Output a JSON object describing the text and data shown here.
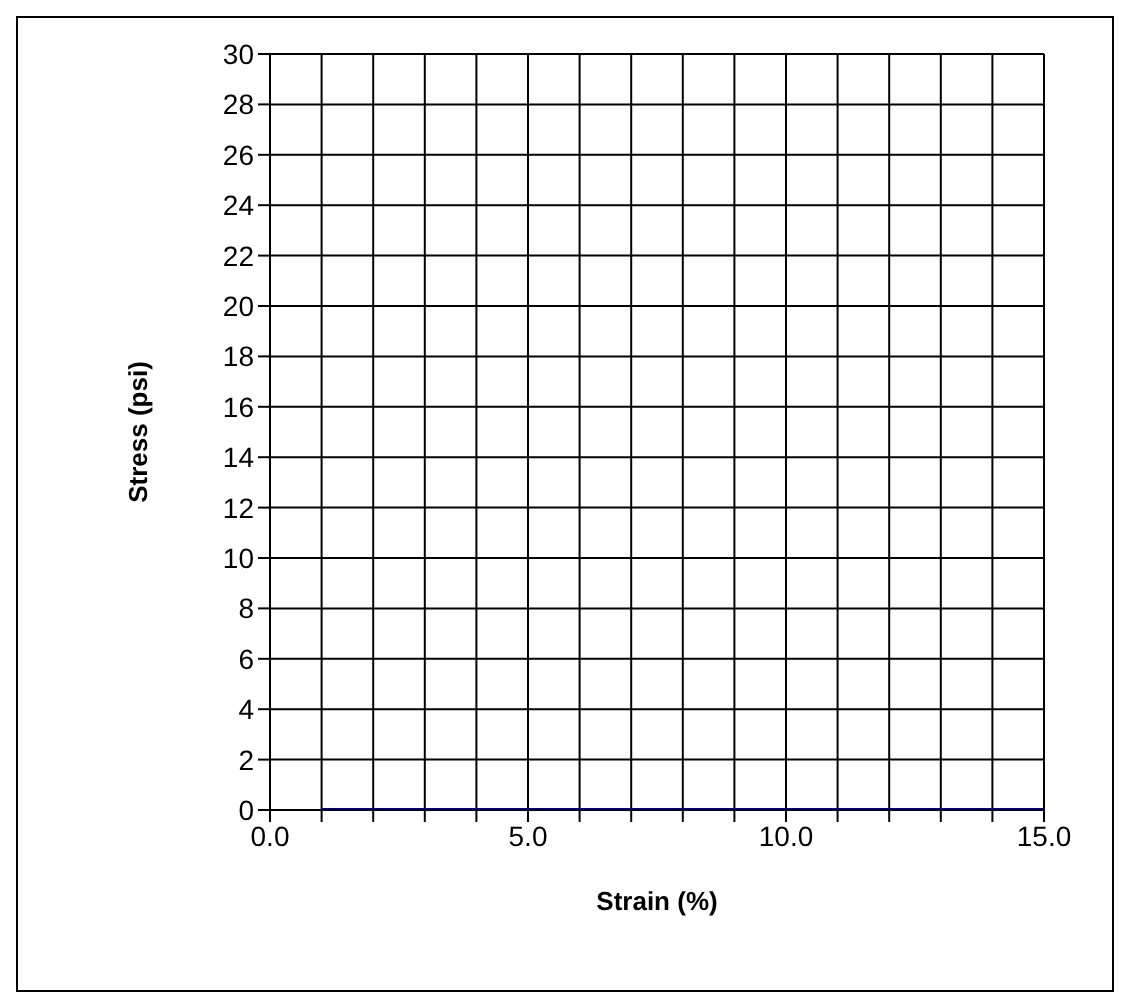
{
  "chart_data": {
    "type": "line",
    "xlabel": "Strain (%)",
    "ylabel": "Stress (psi)",
    "x": [
      1,
      15
    ],
    "series": [
      {
        "color": "#000080",
        "values": [
          0,
          0
        ]
      }
    ],
    "xlim": [
      0,
      15
    ],
    "xticks": [
      {
        "value": 0,
        "label": "0.0"
      },
      {
        "value": 1,
        "label": null
      },
      {
        "value": 2,
        "label": null
      },
      {
        "value": 3,
        "label": null
      },
      {
        "value": 4,
        "label": null
      },
      {
        "value": 5,
        "label": "5.0"
      },
      {
        "value": 6,
        "label": null
      },
      {
        "value": 7,
        "label": null
      },
      {
        "value": 8,
        "label": null
      },
      {
        "value": 9,
        "label": null
      },
      {
        "value": 10,
        "label": "10.0"
      },
      {
        "value": 11,
        "label": null
      },
      {
        "value": 12,
        "label": null
      },
      {
        "value": 13,
        "label": null
      },
      {
        "value": 14,
        "label": null
      },
      {
        "value": 15,
        "label": "15.0"
      }
    ],
    "ylim": [
      0,
      30
    ],
    "yticks": [
      0,
      2,
      4,
      6,
      8,
      10,
      12,
      14,
      16,
      18,
      20,
      22,
      24,
      26,
      28,
      30
    ],
    "grid": true,
    "marker": "none",
    "line_style": "solid"
  }
}
